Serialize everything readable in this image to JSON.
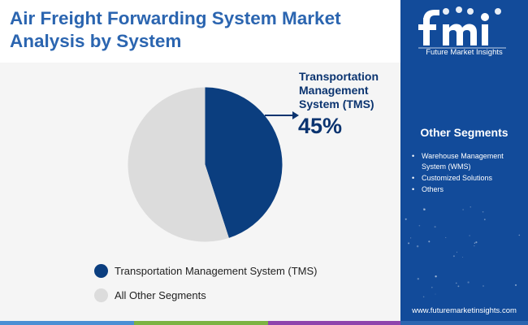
{
  "header": {
    "title": "Air Freight Forwarding System Market Analysis by System"
  },
  "chart_data": {
    "type": "pie",
    "slices": [
      {
        "label": "Transportation Management System (TMS)",
        "value": 45,
        "color": "#0b3e7f"
      },
      {
        "label": "All Other Segments",
        "value": 55,
        "color": "#dcdcdc"
      }
    ],
    "start_angle_deg": 0,
    "direction": "clockwise",
    "legend_position": "bottom-left"
  },
  "callout": {
    "label": "Transportation Management System (TMS)",
    "percent": "45%"
  },
  "legend": {
    "items": [
      {
        "label": "Transportation Management System (TMS)",
        "color": "#0b3e7f"
      },
      {
        "label": "All Other Segments",
        "color": "#dcdcdc"
      }
    ]
  },
  "sidebar": {
    "logo_text": "Future Market Insights",
    "other_segments_title": "Other Segments",
    "other_segments": [
      "Warehouse Management System (WMS)",
      "Customized Solutions",
      "Others"
    ],
    "website": "www.futuremarketinsights.com"
  },
  "footer": {
    "colors": [
      "#4a8fd4",
      "#7cb342",
      "#8e44ad",
      "#2b65b0"
    ]
  },
  "colors": {
    "title": "#2b65b0",
    "sidebar_bg": "#124b9a",
    "callout": "#0b3470"
  }
}
